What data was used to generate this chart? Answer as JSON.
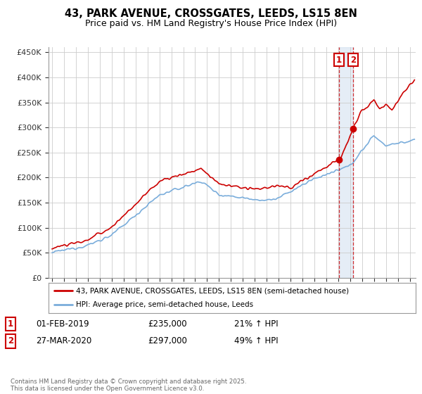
{
  "title": "43, PARK AVENUE, CROSSGATES, LEEDS, LS15 8EN",
  "subtitle": "Price paid vs. HM Land Registry's House Price Index (HPI)",
  "ylim": [
    0,
    460000
  ],
  "yticks": [
    0,
    50000,
    100000,
    150000,
    200000,
    250000,
    300000,
    350000,
    400000,
    450000
  ],
  "ytick_labels": [
    "£0",
    "£50K",
    "£100K",
    "£150K",
    "£200K",
    "£250K",
    "£300K",
    "£350K",
    "£400K",
    "£450K"
  ],
  "xlim_start": 1994.7,
  "xlim_end": 2025.5,
  "line1_color": "#cc0000",
  "line2_color": "#7aaddb",
  "marker1_date": 2019.08,
  "marker1_value": 235000,
  "marker2_date": 2020.25,
  "marker2_value": 297000,
  "vline1_date": 2019.08,
  "vline2_date": 2020.25,
  "legend_label1": "43, PARK AVENUE, CROSSGATES, LEEDS, LS15 8EN (semi-detached house)",
  "legend_label2": "HPI: Average price, semi-detached house, Leeds",
  "table_row1": [
    "1",
    "01-FEB-2019",
    "£235,000",
    "21% ↑ HPI"
  ],
  "table_row2": [
    "2",
    "27-MAR-2020",
    "£297,000",
    "49% ↑ HPI"
  ],
  "footer": "Contains HM Land Registry data © Crown copyright and database right 2025.\nThis data is licensed under the Open Government Licence v3.0.",
  "bg_color": "#ffffff",
  "grid_color": "#cccccc",
  "title_fontsize": 10.5,
  "subtitle_fontsize": 9
}
